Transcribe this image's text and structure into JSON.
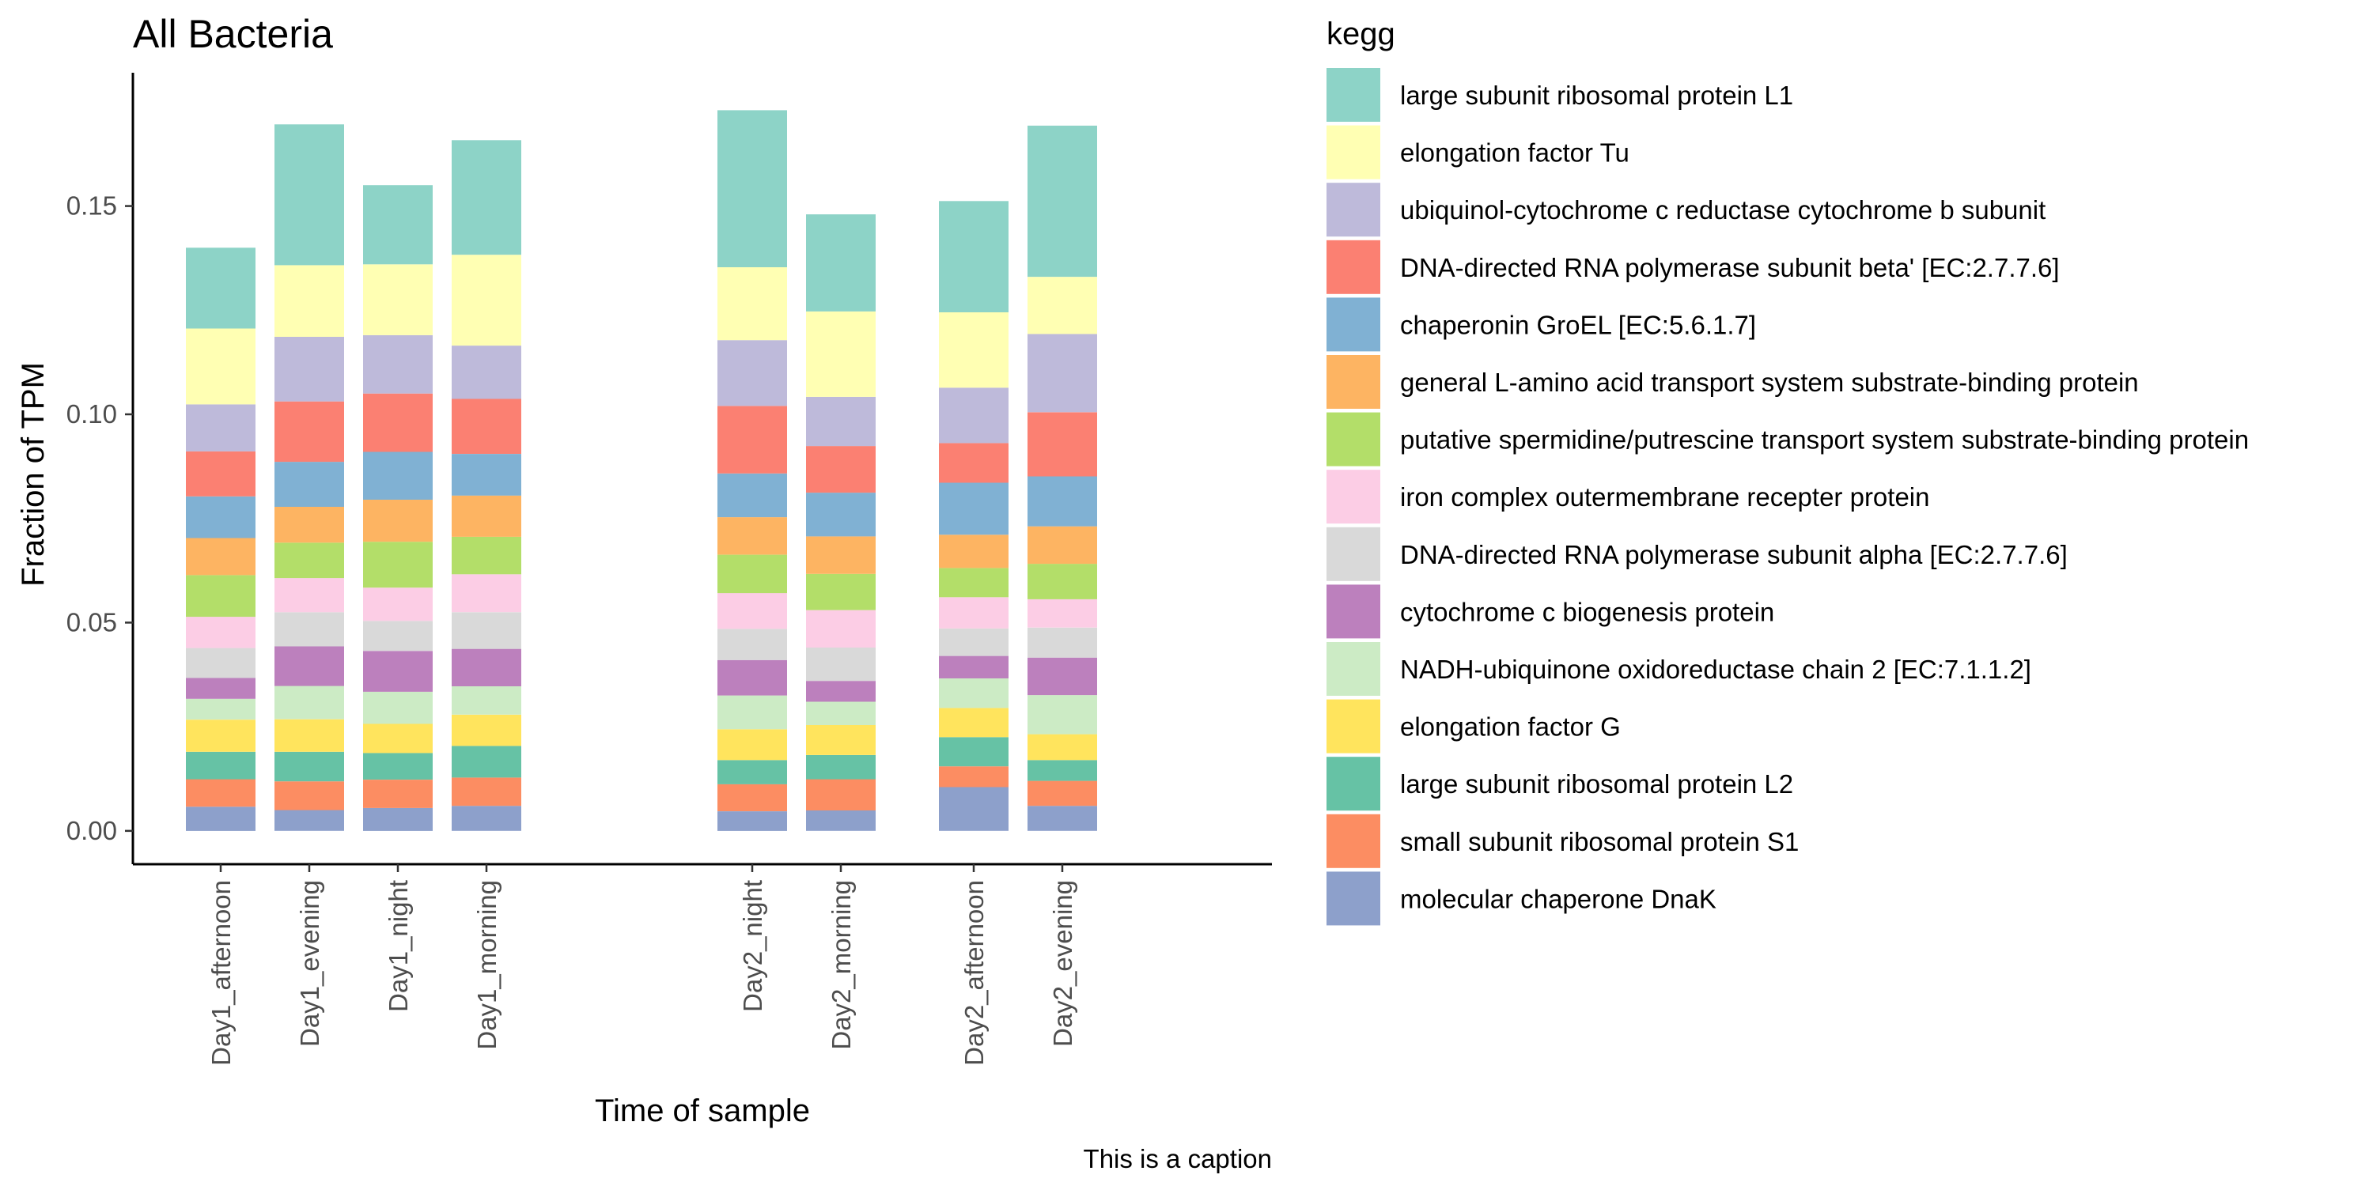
{
  "chart_data": {
    "type": "bar",
    "stacked": true,
    "title": "All Bacteria",
    "xlabel": "Time of sample",
    "ylabel": "Fraction of TPM",
    "caption": "This is a caption",
    "legend_title": "kegg",
    "legend_position": "right",
    "grid": false,
    "ylim": [
      -0.008,
      0.182
    ],
    "yticks": [
      "0.00",
      "0.05",
      "0.10",
      "0.15"
    ],
    "ytick_values": [
      0,
      0.05,
      0.1,
      0.15
    ],
    "categories": [
      "Day1_afternoon",
      "Day1_evening",
      "Day1_night",
      "Day1_morning",
      "Day2_night",
      "Day2_morning",
      "Day2_afternoon",
      "Day2_evening"
    ],
    "category_x": [
      1,
      2,
      3,
      4,
      7,
      8,
      9.5,
      10.5
    ],
    "series": [
      {
        "name": "molecular chaperone DnaK",
        "color": "#8DA0CB",
        "values": [
          0.0058,
          0.005,
          0.0055,
          0.006,
          0.0047,
          0.0049,
          0.0105,
          0.006
        ]
      },
      {
        "name": "small subunit ribosomal protein S1",
        "color": "#FC8D62",
        "values": [
          0.0066,
          0.0069,
          0.0068,
          0.0068,
          0.0065,
          0.0075,
          0.005,
          0.006
        ]
      },
      {
        "name": "large subunit ribosomal protein L2",
        "color": "#66C2A5",
        "values": [
          0.0066,
          0.0071,
          0.0064,
          0.0076,
          0.0058,
          0.0058,
          0.007,
          0.005
        ]
      },
      {
        "name": "elongation factor G",
        "color": "#FFE45D",
        "values": [
          0.0077,
          0.0078,
          0.007,
          0.0075,
          0.0074,
          0.0072,
          0.007,
          0.0062
        ]
      },
      {
        "name": "NADH-ubiquinone oxidoreductase chain 2 [EC:7.1.1.2]",
        "color": "#CCEBC5",
        "values": [
          0.005,
          0.008,
          0.0077,
          0.0068,
          0.0081,
          0.0056,
          0.0071,
          0.0094
        ]
      },
      {
        "name": "cytochrome c biogenesis protein",
        "color": "#BC80BD",
        "values": [
          0.005,
          0.0095,
          0.0098,
          0.009,
          0.0085,
          0.005,
          0.0054,
          0.009
        ]
      },
      {
        "name": "DNA-directed RNA polymerase subunit alpha [EC:2.7.7.6]",
        "color": "#D9D9D9",
        "values": [
          0.0072,
          0.0082,
          0.0072,
          0.0088,
          0.0075,
          0.008,
          0.0066,
          0.0072
        ]
      },
      {
        "name": "iron complex outermembrane recepter protein",
        "color": "#FCCDE5",
        "values": [
          0.0075,
          0.0082,
          0.008,
          0.0091,
          0.0086,
          0.009,
          0.0075,
          0.0068
        ]
      },
      {
        "name": "putative spermidine/putrescine transport system substrate-binding protein",
        "color": "#B3DE69",
        "values": [
          0.01,
          0.0085,
          0.011,
          0.009,
          0.0092,
          0.0087,
          0.007,
          0.0085
        ]
      },
      {
        "name": "general L-amino acid transport system substrate-binding protein",
        "color": "#FDB462",
        "values": [
          0.0089,
          0.0086,
          0.0101,
          0.0099,
          0.009,
          0.009,
          0.008,
          0.009
        ]
      },
      {
        "name": "chaperonin GroEL [EC:5.6.1.7]",
        "color": "#80B1D3",
        "values": [
          0.01,
          0.0108,
          0.0115,
          0.01,
          0.0105,
          0.0105,
          0.0125,
          0.012
        ]
      },
      {
        "name": "DNA-directed RNA polymerase subunit beta' [EC:2.7.7.6]",
        "color": "#FB8072",
        "values": [
          0.0108,
          0.0145,
          0.014,
          0.0132,
          0.0162,
          0.0112,
          0.0095,
          0.0154
        ]
      },
      {
        "name": "ubiquinol-cytochrome c reductase cytochrome b subunit",
        "color": "#BEBADA",
        "values": [
          0.0113,
          0.0155,
          0.014,
          0.0128,
          0.0158,
          0.0118,
          0.0133,
          0.0188
        ]
      },
      {
        "name": "elongation factor Tu",
        "color": "#FFFFB3",
        "values": [
          0.0182,
          0.0172,
          0.017,
          0.0218,
          0.0175,
          0.0205,
          0.0181,
          0.0137
        ]
      },
      {
        "name": "large subunit ribosomal protein L1",
        "color": "#8DD3C7",
        "values": [
          0.0194,
          0.0338,
          0.019,
          0.0275,
          0.0377,
          0.0233,
          0.0267,
          0.0363
        ]
      }
    ]
  }
}
